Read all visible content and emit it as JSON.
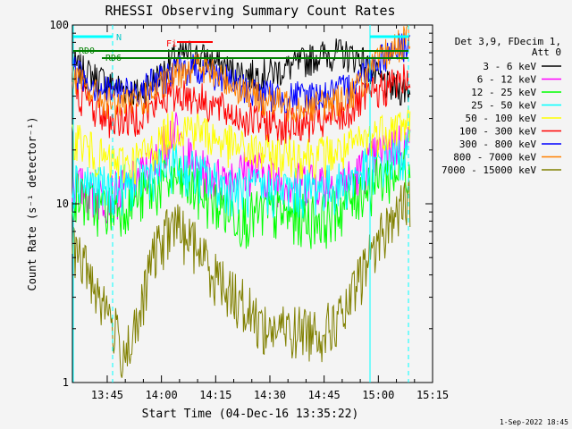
{
  "chart_data": {
    "type": "line",
    "title": "RHESSI Observing Summary Count Rates",
    "xlabel": "Start Time (04-Dec-16 13:35:22)",
    "ylabel": "Count Rate (s⁻¹ detector⁻¹)",
    "y_scale": "log",
    "ylim": [
      1,
      100
    ],
    "xlim": [
      "13:35:22",
      "15:15:00"
    ],
    "x_ticks": [
      "13:45",
      "14:00",
      "14:15",
      "14:30",
      "14:45",
      "15:00",
      "15:15"
    ],
    "y_ticks": [
      "1",
      "10",
      "100"
    ],
    "legend": {
      "position": "right",
      "header": [
        "Det 3,9, FDecim 1,",
        "Att 0"
      ]
    },
    "series": [
      {
        "name": "3 - 6 keV",
        "color": "#000000",
        "values": [
          [
            0,
            60
          ],
          [
            6,
            52
          ],
          [
            12,
            46
          ],
          [
            18,
            42
          ],
          [
            24,
            52
          ],
          [
            28,
            65
          ],
          [
            33,
            70
          ],
          [
            38,
            64
          ],
          [
            44,
            56
          ],
          [
            50,
            53
          ],
          [
            56,
            55
          ],
          [
            62,
            60
          ],
          [
            68,
            68
          ],
          [
            74,
            70
          ],
          [
            80,
            66
          ],
          [
            82,
            58
          ],
          [
            85,
            50
          ],
          [
            88,
            45
          ],
          [
            92,
            44
          ],
          [
            96,
            42
          ],
          [
            100,
            44
          ]
        ]
      },
      {
        "name": "6 - 12 keV",
        "color": "#ff00ff",
        "values": [
          [
            0,
            13
          ],
          [
            8,
            11
          ],
          [
            14,
            12
          ],
          [
            18,
            14
          ],
          [
            23,
            17
          ],
          [
            26,
            23
          ],
          [
            28,
            27
          ],
          [
            31,
            20
          ],
          [
            34,
            16
          ],
          [
            40,
            14
          ],
          [
            46,
            15
          ],
          [
            50,
            16
          ],
          [
            56,
            14
          ],
          [
            62,
            13
          ],
          [
            66,
            14
          ],
          [
            72,
            13
          ],
          [
            78,
            14
          ],
          [
            82,
            17
          ],
          [
            86,
            20
          ],
          [
            90,
            22
          ],
          [
            95,
            22
          ],
          [
            100,
            22
          ]
        ]
      },
      {
        "name": "12 - 25 keV",
        "color": "#00ff00",
        "values": [
          [
            0,
            12
          ],
          [
            5,
            10
          ],
          [
            10,
            9.5
          ],
          [
            16,
            10.5
          ],
          [
            22,
            12
          ],
          [
            28,
            14
          ],
          [
            34,
            12
          ],
          [
            40,
            10
          ],
          [
            48,
            8.5
          ],
          [
            55,
            9
          ],
          [
            62,
            8.5
          ],
          [
            70,
            8.5
          ],
          [
            76,
            10
          ],
          [
            80,
            12
          ],
          [
            86,
            14
          ],
          [
            92,
            16
          ],
          [
            96,
            17
          ],
          [
            100,
            17
          ]
        ]
      },
      {
        "name": "25 - 50 keV",
        "color": "#00ffff",
        "values": [
          [
            0,
            14
          ],
          [
            5,
            13
          ],
          [
            10,
            12
          ],
          [
            16,
            13
          ],
          [
            22,
            15
          ],
          [
            28,
            17
          ],
          [
            34,
            15
          ],
          [
            40,
            13
          ],
          [
            48,
            12
          ],
          [
            56,
            12
          ],
          [
            64,
            12
          ],
          [
            70,
            12.5
          ],
          [
            76,
            13
          ],
          [
            80,
            15
          ],
          [
            86,
            17
          ],
          [
            92,
            19
          ],
          [
            96,
            20
          ],
          [
            100,
            21
          ]
        ]
      },
      {
        "name": "50 - 100 keV",
        "color": "#ffff00",
        "values": [
          [
            0,
            25
          ],
          [
            5,
            20
          ],
          [
            10,
            17
          ],
          [
            16,
            17
          ],
          [
            22,
            20
          ],
          [
            28,
            27
          ],
          [
            34,
            27
          ],
          [
            40,
            23
          ],
          [
            48,
            20
          ],
          [
            56,
            19
          ],
          [
            64,
            19
          ],
          [
            70,
            19
          ],
          [
            76,
            20
          ],
          [
            80,
            22
          ],
          [
            86,
            26
          ],
          [
            92,
            28
          ],
          [
            96,
            29
          ],
          [
            100,
            29
          ]
        ]
      },
      {
        "name": "100 - 300 keV",
        "color": "#ff0000",
        "values": [
          [
            0,
            45
          ],
          [
            5,
            36
          ],
          [
            10,
            30
          ],
          [
            16,
            30
          ],
          [
            22,
            34
          ],
          [
            26,
            40
          ],
          [
            29,
            42
          ],
          [
            34,
            40
          ],
          [
            40,
            35
          ],
          [
            46,
            31
          ],
          [
            52,
            29
          ],
          [
            58,
            28
          ],
          [
            64,
            28
          ],
          [
            70,
            29
          ],
          [
            76,
            32
          ],
          [
            80,
            38
          ],
          [
            86,
            44
          ],
          [
            92,
            50
          ],
          [
            96,
            52
          ],
          [
            100,
            52
          ]
        ]
      },
      {
        "name": "300 - 800 keV",
        "color": "#0000ff",
        "values": [
          [
            0,
            58
          ],
          [
            5,
            48
          ],
          [
            10,
            43
          ],
          [
            16,
            43
          ],
          [
            22,
            47
          ],
          [
            28,
            55
          ],
          [
            34,
            58
          ],
          [
            40,
            53
          ],
          [
            46,
            46
          ],
          [
            52,
            42
          ],
          [
            58,
            40
          ],
          [
            64,
            40
          ],
          [
            70,
            41
          ],
          [
            76,
            44
          ],
          [
            80,
            52
          ],
          [
            84,
            64
          ],
          [
            90,
            74
          ],
          [
            94,
            82
          ],
          [
            97,
            80
          ],
          [
            100,
            76
          ]
        ]
      },
      {
        "name": "800 - 7000 keV",
        "color": "#ff8000",
        "values": [
          [
            0,
            52
          ],
          [
            5,
            43
          ],
          [
            10,
            37
          ],
          [
            16,
            36
          ],
          [
            22,
            41
          ],
          [
            28,
            52
          ],
          [
            32,
            60
          ],
          [
            36,
            58
          ],
          [
            42,
            50
          ],
          [
            48,
            43
          ],
          [
            54,
            38
          ],
          [
            60,
            36
          ],
          [
            66,
            36
          ],
          [
            72,
            37
          ],
          [
            76,
            40
          ],
          [
            80,
            47
          ],
          [
            84,
            60
          ],
          [
            88,
            72
          ],
          [
            92,
            82
          ],
          [
            96,
            88
          ],
          [
            100,
            88
          ]
        ]
      },
      {
        "name": "7000 - 15000 keV",
        "color": "#808000",
        "values": [
          [
            0,
            6
          ],
          [
            5,
            4
          ],
          [
            10,
            2.5
          ],
          [
            14,
            1.5
          ],
          [
            18,
            2
          ],
          [
            22,
            5
          ],
          [
            28,
            8
          ],
          [
            34,
            6
          ],
          [
            40,
            4
          ],
          [
            46,
            3
          ],
          [
            54,
            2
          ],
          [
            62,
            2
          ],
          [
            70,
            2
          ],
          [
            76,
            2.5
          ],
          [
            80,
            4
          ],
          [
            84,
            6
          ],
          [
            88,
            8
          ],
          [
            92,
            10
          ],
          [
            96,
            11
          ],
          [
            100,
            11
          ]
        ]
      }
    ],
    "annotations": {
      "attenuator_labels": [
        "N",
        "RD0",
        "RD6",
        "Fi"
      ],
      "timestamp": "1-Sep-2022 18:45"
    }
  }
}
